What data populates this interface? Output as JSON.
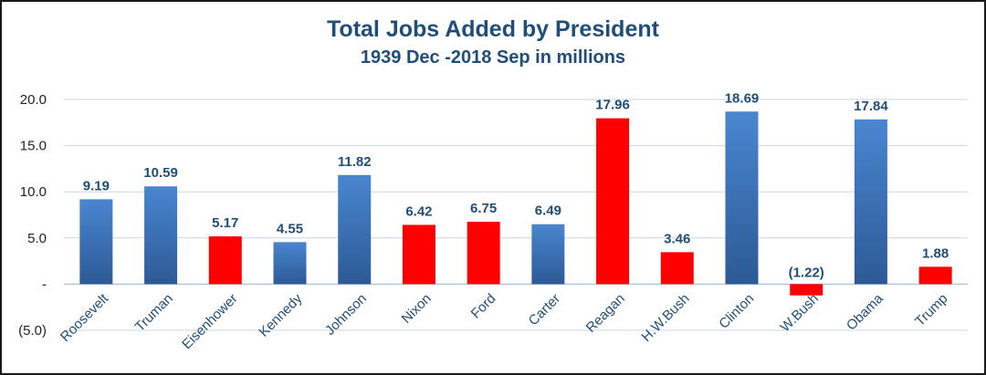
{
  "chart_data": {
    "type": "bar",
    "title": "Total Jobs Added by President",
    "subtitle": "1939 Dec -2018 Sep in millions",
    "xlabel": "",
    "ylabel": "",
    "ylim": [
      -5,
      20
    ],
    "grid": true,
    "y_ticks": [
      {
        "value": 20,
        "label": "20.0"
      },
      {
        "value": 15,
        "label": "15.0"
      },
      {
        "value": 10,
        "label": "10.0"
      },
      {
        "value": 5,
        "label": "5.0"
      },
      {
        "value": 0,
        "label": "-"
      },
      {
        "value": -5,
        "label": "(5.0)"
      }
    ],
    "categories": [
      "Roosevelt",
      "Truman",
      "Eisenhower",
      "Kennedy",
      "Johnson",
      "Nixon",
      "Ford",
      "Carter",
      "Reagan",
      "H.W.Bush",
      "Clinton",
      "W.Bush",
      "Obama",
      "Trump"
    ],
    "values": [
      9.19,
      10.59,
      5.17,
      4.55,
      11.82,
      6.42,
      6.75,
      6.49,
      17.96,
      3.46,
      18.69,
      -1.22,
      17.84,
      1.88
    ],
    "data_labels": [
      "9.19",
      "10.59",
      "5.17",
      "4.55",
      "11.82",
      "6.42",
      "6.75",
      "6.49",
      "17.96",
      "3.46",
      "18.69",
      "(1.22)",
      "17.84",
      "1.88"
    ],
    "party": [
      "D",
      "D",
      "R",
      "D",
      "D",
      "R",
      "R",
      "D",
      "R",
      "R",
      "D",
      "R",
      "D",
      "R"
    ],
    "colors": {
      "D_top": "#4a86d0",
      "D_bottom": "#2c5a95",
      "R": "#ff0000",
      "grid": "#c9d7e8",
      "axis": "#9bb3d1"
    }
  }
}
